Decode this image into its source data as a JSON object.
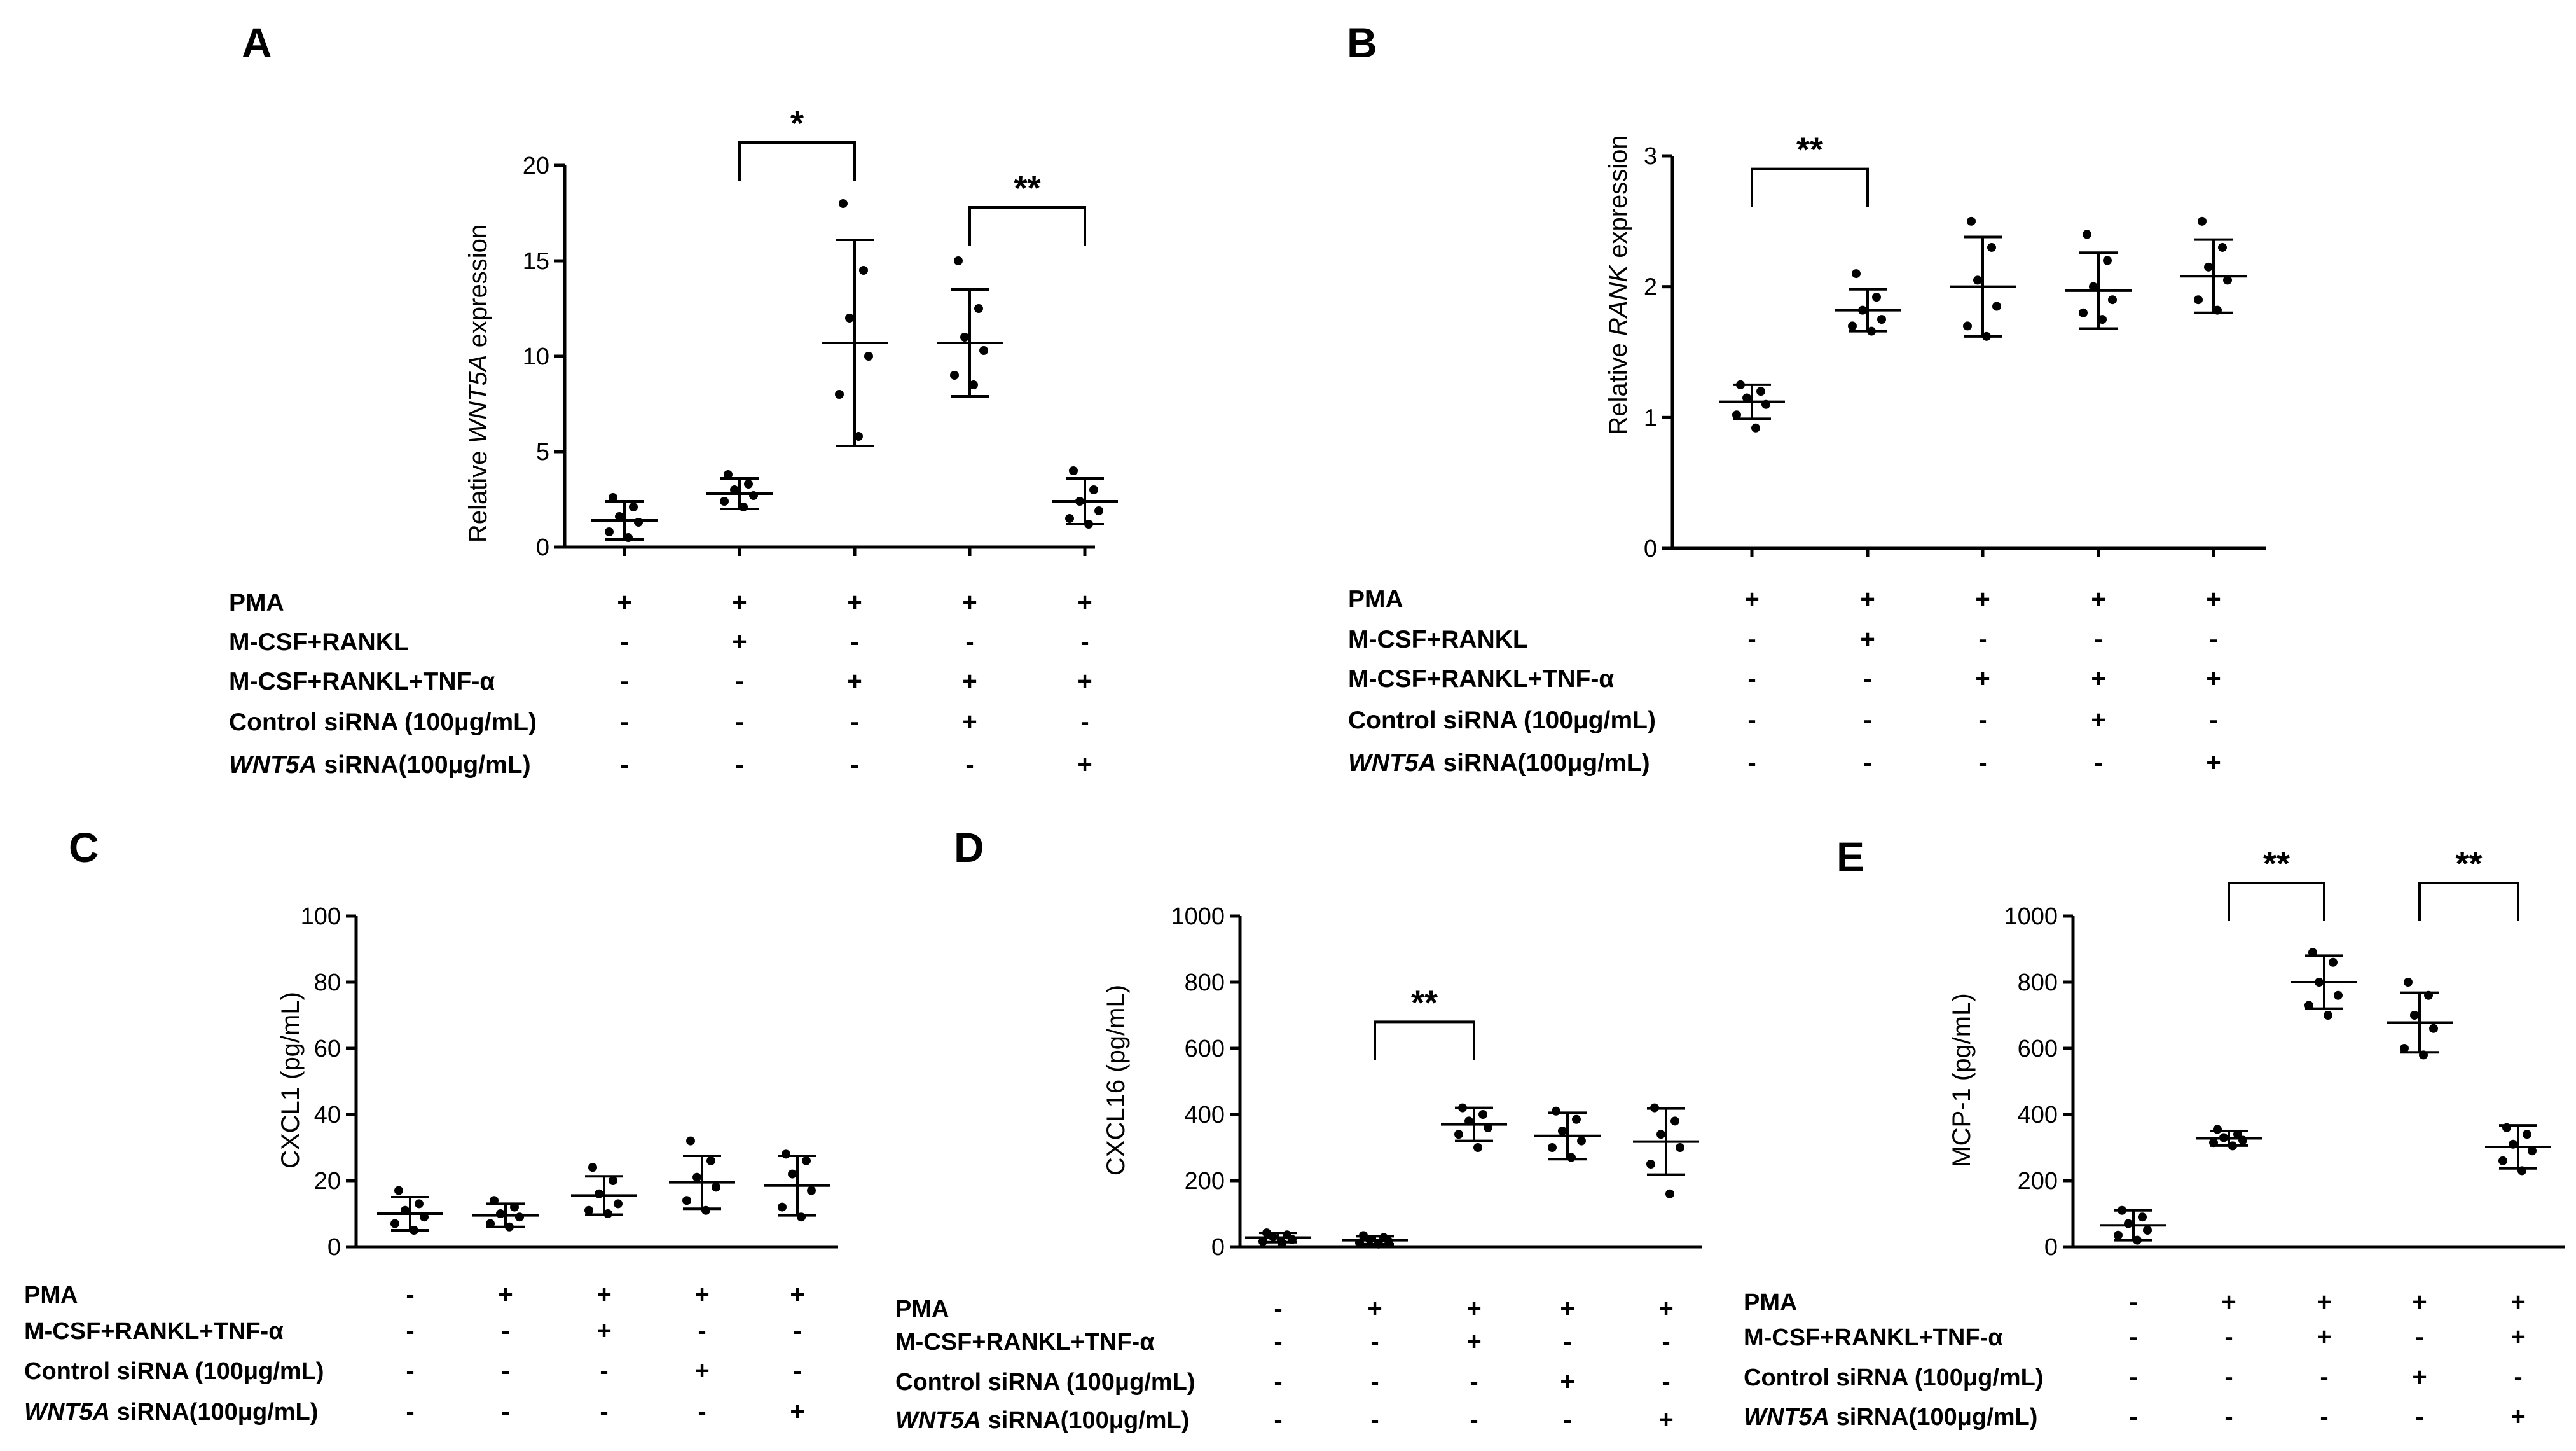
{
  "chart_data": [
    {
      "panel": "A",
      "type": "scatter",
      "ylabel_prefix": "Relative ",
      "ylabel_italic": "WNT5A",
      "ylabel_suffix": " expression",
      "ylim": [
        0,
        20
      ],
      "yticks": [
        0,
        5,
        10,
        15,
        20
      ],
      "groups": [
        {
          "mean": 1.4,
          "sd": 1.0,
          "points": [
            2.6,
            2.1,
            1.6,
            1.3,
            0.8,
            0.5
          ]
        },
        {
          "mean": 2.8,
          "sd": 0.8,
          "points": [
            3.8,
            3.3,
            3.0,
            2.7,
            2.4,
            2.1
          ]
        },
        {
          "mean": 10.7,
          "sd": 5.4,
          "points": [
            18.0,
            14.5,
            12.0,
            10.0,
            8.0,
            5.8
          ]
        },
        {
          "mean": 10.7,
          "sd": 2.8,
          "points": [
            15.0,
            12.5,
            11.0,
            10.3,
            9.0,
            8.5
          ]
        },
        {
          "mean": 2.4,
          "sd": 1.2,
          "points": [
            4.0,
            3.0,
            2.4,
            1.9,
            1.5,
            1.2
          ]
        }
      ],
      "significance": [
        {
          "from": 1,
          "to": 2,
          "label": "*",
          "y": 21.2
        },
        {
          "from": 3,
          "to": 4,
          "label": "**",
          "y": 17.8
        }
      ],
      "conditions": [
        {
          "label": "PMA",
          "italic": "",
          "marks": [
            "+",
            "+",
            "+",
            "+",
            "+"
          ]
        },
        {
          "label": "M-CSF+RANKL",
          "italic": "",
          "marks": [
            "-",
            "+",
            "-",
            "-",
            "-"
          ]
        },
        {
          "label": "M-CSF+RANKL+TNF-α",
          "italic": "",
          "marks": [
            "-",
            "-",
            "+",
            "+",
            "+"
          ]
        },
        {
          "label": "Control siRNA (100μg/mL)",
          "italic": "",
          "marks": [
            "-",
            "-",
            "-",
            "+",
            "-"
          ]
        },
        {
          "label": " siRNA(100μg/mL)",
          "italic": "WNT5A",
          "marks": [
            "-",
            "-",
            "-",
            "-",
            "+"
          ]
        }
      ]
    },
    {
      "panel": "B",
      "type": "scatter",
      "ylabel_prefix": "Relative ",
      "ylabel_italic": "RANK",
      "ylabel_suffix": " expression",
      "ylim": [
        0,
        3
      ],
      "yticks": [
        0,
        1,
        2,
        3
      ],
      "groups": [
        {
          "mean": 1.12,
          "sd": 0.13,
          "points": [
            1.25,
            1.2,
            1.15,
            1.1,
            1.02,
            0.92
          ]
        },
        {
          "mean": 1.82,
          "sd": 0.16,
          "points": [
            2.1,
            1.92,
            1.82,
            1.75,
            1.7,
            1.66
          ]
        },
        {
          "mean": 2.0,
          "sd": 0.38,
          "points": [
            2.5,
            2.3,
            2.05,
            1.85,
            1.7,
            1.62
          ]
        },
        {
          "mean": 1.97,
          "sd": 0.29,
          "points": [
            2.4,
            2.2,
            2.0,
            1.9,
            1.8,
            1.75
          ]
        },
        {
          "mean": 2.08,
          "sd": 0.28,
          "points": [
            2.5,
            2.3,
            2.15,
            2.05,
            1.9,
            1.82
          ]
        }
      ],
      "significance": [
        {
          "from": 0,
          "to": 1,
          "label": "**",
          "y": 2.9
        }
      ],
      "conditions": [
        {
          "label": "PMA",
          "italic": "",
          "marks": [
            "+",
            "+",
            "+",
            "+",
            "+"
          ]
        },
        {
          "label": "M-CSF+RANKL",
          "italic": "",
          "marks": [
            "-",
            "+",
            "-",
            "-",
            "-"
          ]
        },
        {
          "label": "M-CSF+RANKL+TNF-α",
          "italic": "",
          "marks": [
            "-",
            "-",
            "+",
            "+",
            "+"
          ]
        },
        {
          "label": "Control siRNA (100μg/mL)",
          "italic": "",
          "marks": [
            "-",
            "-",
            "-",
            "+",
            "-"
          ]
        },
        {
          "label": " siRNA(100μg/mL)",
          "italic": "WNT5A",
          "marks": [
            "-",
            "-",
            "-",
            "-",
            "+"
          ]
        }
      ]
    },
    {
      "panel": "C",
      "type": "scatter",
      "ylabel_prefix": "CXCL1  (pg/mL)",
      "ylabel_italic": "",
      "ylabel_suffix": "",
      "ylim": [
        0,
        100
      ],
      "yticks": [
        0,
        20,
        40,
        60,
        80,
        100
      ],
      "groups": [
        {
          "mean": 10.0,
          "sd": 5.0,
          "points": [
            17.0,
            13.0,
            11.0,
            9.0,
            7.0,
            5.0
          ]
        },
        {
          "mean": 9.5,
          "sd": 3.5,
          "points": [
            14.0,
            12.0,
            10.0,
            9.0,
            7.0,
            6.0
          ]
        },
        {
          "mean": 15.5,
          "sd": 5.8,
          "points": [
            24.0,
            20.0,
            16.0,
            13.0,
            11.0,
            10.0
          ]
        },
        {
          "mean": 19.5,
          "sd": 8.0,
          "points": [
            32.0,
            26.0,
            21.0,
            18.0,
            14.0,
            11.0
          ]
        },
        {
          "mean": 18.5,
          "sd": 9.0,
          "points": [
            28.0,
            26.0,
            22.0,
            17.0,
            12.0,
            9.0
          ]
        }
      ],
      "significance": [],
      "conditions": [
        {
          "label": "PMA",
          "italic": "",
          "marks": [
            "-",
            "+",
            "+",
            "+",
            "+"
          ]
        },
        {
          "label": "M-CSF+RANKL+TNF-α",
          "italic": "",
          "marks": [
            "-",
            "-",
            "+",
            "-",
            "-"
          ]
        },
        {
          "label": "Control siRNA (100μg/mL)",
          "italic": "",
          "marks": [
            "-",
            "-",
            "-",
            "+",
            "-"
          ]
        },
        {
          "label": " siRNA(100μg/mL)",
          "italic": "WNT5A",
          "marks": [
            "-",
            "-",
            "-",
            "-",
            "+"
          ]
        }
      ]
    },
    {
      "panel": "D",
      "type": "scatter",
      "ylabel_prefix": "CXCL16  (pg/mL)",
      "ylabel_italic": "",
      "ylabel_suffix": "",
      "ylim": [
        0,
        1000
      ],
      "yticks": [
        0,
        200,
        400,
        600,
        800,
        1000
      ],
      "groups": [
        {
          "mean": 28.0,
          "sd": 14.0,
          "points": [
            42.0,
            36.0,
            30.0,
            22.0,
            16.0,
            12.0
          ]
        },
        {
          "mean": 20.0,
          "sd": 12.0,
          "points": [
            34.0,
            28.0,
            22.0,
            16.0,
            12.0,
            8.0
          ]
        },
        {
          "mean": 370.0,
          "sd": 50.0,
          "points": [
            420.0,
            400.0,
            380.0,
            360.0,
            340.0,
            300.0
          ]
        },
        {
          "mean": 335.0,
          "sd": 70.0,
          "points": [
            410.0,
            385.0,
            350.0,
            320.0,
            300.0,
            270.0
          ]
        },
        {
          "mean": 318.0,
          "sd": 100.0,
          "points": [
            420.0,
            380.0,
            340.0,
            300.0,
            250.0,
            160.0
          ]
        }
      ],
      "significance": [
        {
          "from": 1,
          "to": 2,
          "label": "**",
          "y": 680
        }
      ],
      "conditions": [
        {
          "label": "PMA",
          "italic": "",
          "marks": [
            "-",
            "+",
            "+",
            "+",
            "+"
          ]
        },
        {
          "label": "M-CSF+RANKL+TNF-α",
          "italic": "",
          "marks": [
            "-",
            "-",
            "+",
            "-",
            "-"
          ]
        },
        {
          "label": "Control siRNA (100μg/mL)",
          "italic": "",
          "marks": [
            "-",
            "-",
            "-",
            "+",
            "-"
          ]
        },
        {
          "label": " siRNA(100μg/mL)",
          "italic": "WNT5A",
          "marks": [
            "-",
            "-",
            "-",
            "-",
            "+"
          ]
        }
      ]
    },
    {
      "panel": "E",
      "type": "scatter",
      "ylabel_prefix": "MCP-1 (pg/mL)",
      "ylabel_italic": "",
      "ylabel_suffix": "",
      "ylim": [
        0,
        1000
      ],
      "yticks": [
        0,
        200,
        400,
        600,
        800,
        1000
      ],
      "groups": [
        {
          "mean": 65.0,
          "sd": 45.0,
          "points": [
            110.0,
            90.0,
            70.0,
            50.0,
            35.0,
            20.0
          ]
        },
        {
          "mean": 328.0,
          "sd": 22.0,
          "points": [
            355.0,
            340.0,
            330.0,
            322.0,
            315.0,
            305.0
          ]
        },
        {
          "mean": 800.0,
          "sd": 80.0,
          "points": [
            890.0,
            860.0,
            800.0,
            760.0,
            730.0,
            700.0
          ]
        },
        {
          "mean": 678.0,
          "sd": 90.0,
          "points": [
            800.0,
            760.0,
            700.0,
            660.0,
            600.0,
            580.0
          ]
        },
        {
          "mean": 302.0,
          "sd": 65.0,
          "points": [
            360.0,
            340.0,
            310.0,
            290.0,
            260.0,
            230.0
          ]
        }
      ],
      "significance": [
        {
          "from": 1,
          "to": 2,
          "label": "**",
          "y": 1100
        },
        {
          "from": 3,
          "to": 4,
          "label": "**",
          "y": 1100
        }
      ],
      "conditions": [
        {
          "label": "PMA",
          "italic": "",
          "marks": [
            "-",
            "+",
            "+",
            "+",
            "+"
          ]
        },
        {
          "label": "M-CSF+RANKL+TNF-α",
          "italic": "",
          "marks": [
            "-",
            "-",
            "+",
            "-",
            "+"
          ]
        },
        {
          "label": "Control siRNA (100μg/mL)",
          "italic": "",
          "marks": [
            "-",
            "-",
            "-",
            "+",
            "-"
          ]
        },
        {
          "label": " siRNA(100μg/mL)",
          "italic": "WNT5A",
          "marks": [
            "-",
            "-",
            "-",
            "-",
            "+"
          ]
        }
      ]
    }
  ]
}
